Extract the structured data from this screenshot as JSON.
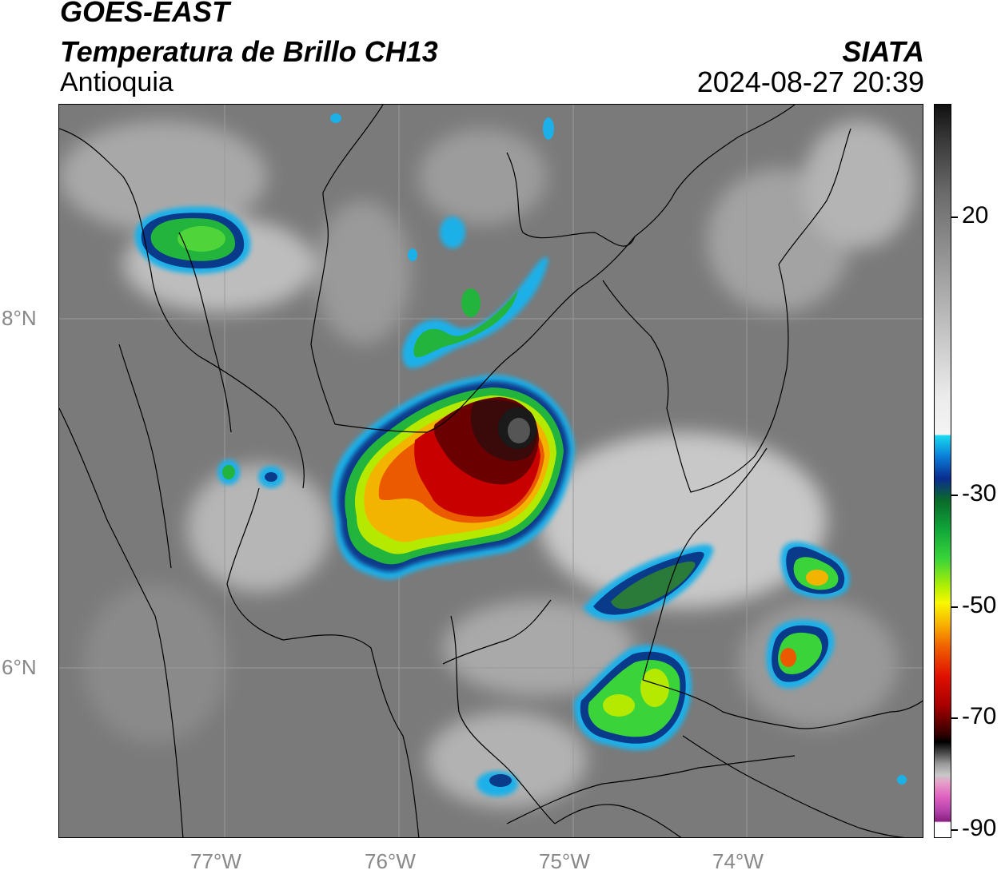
{
  "header": {
    "satellite": "GOES-EAST",
    "product": "Temperatura de Brillo CH13",
    "region": "Antioquia",
    "organization": "SIATA",
    "datetime": "2024-08-27 20:39"
  },
  "map": {
    "lat_labels": [
      "8°N",
      "6°N"
    ],
    "lon_labels": [
      "77°W",
      "76°W",
      "75°W",
      "74°W"
    ],
    "gridlines": true,
    "colors": {
      "land_gray": "#7a7a7a",
      "cold_cloud_top": "#c80000",
      "coldest_core": "#1a1a1a",
      "border_lines": "#000000"
    }
  },
  "colorbar": {
    "ticks": [
      "20",
      "-30",
      "-50",
      "-70",
      "-90"
    ],
    "units_hint": "brightness temperature"
  }
}
